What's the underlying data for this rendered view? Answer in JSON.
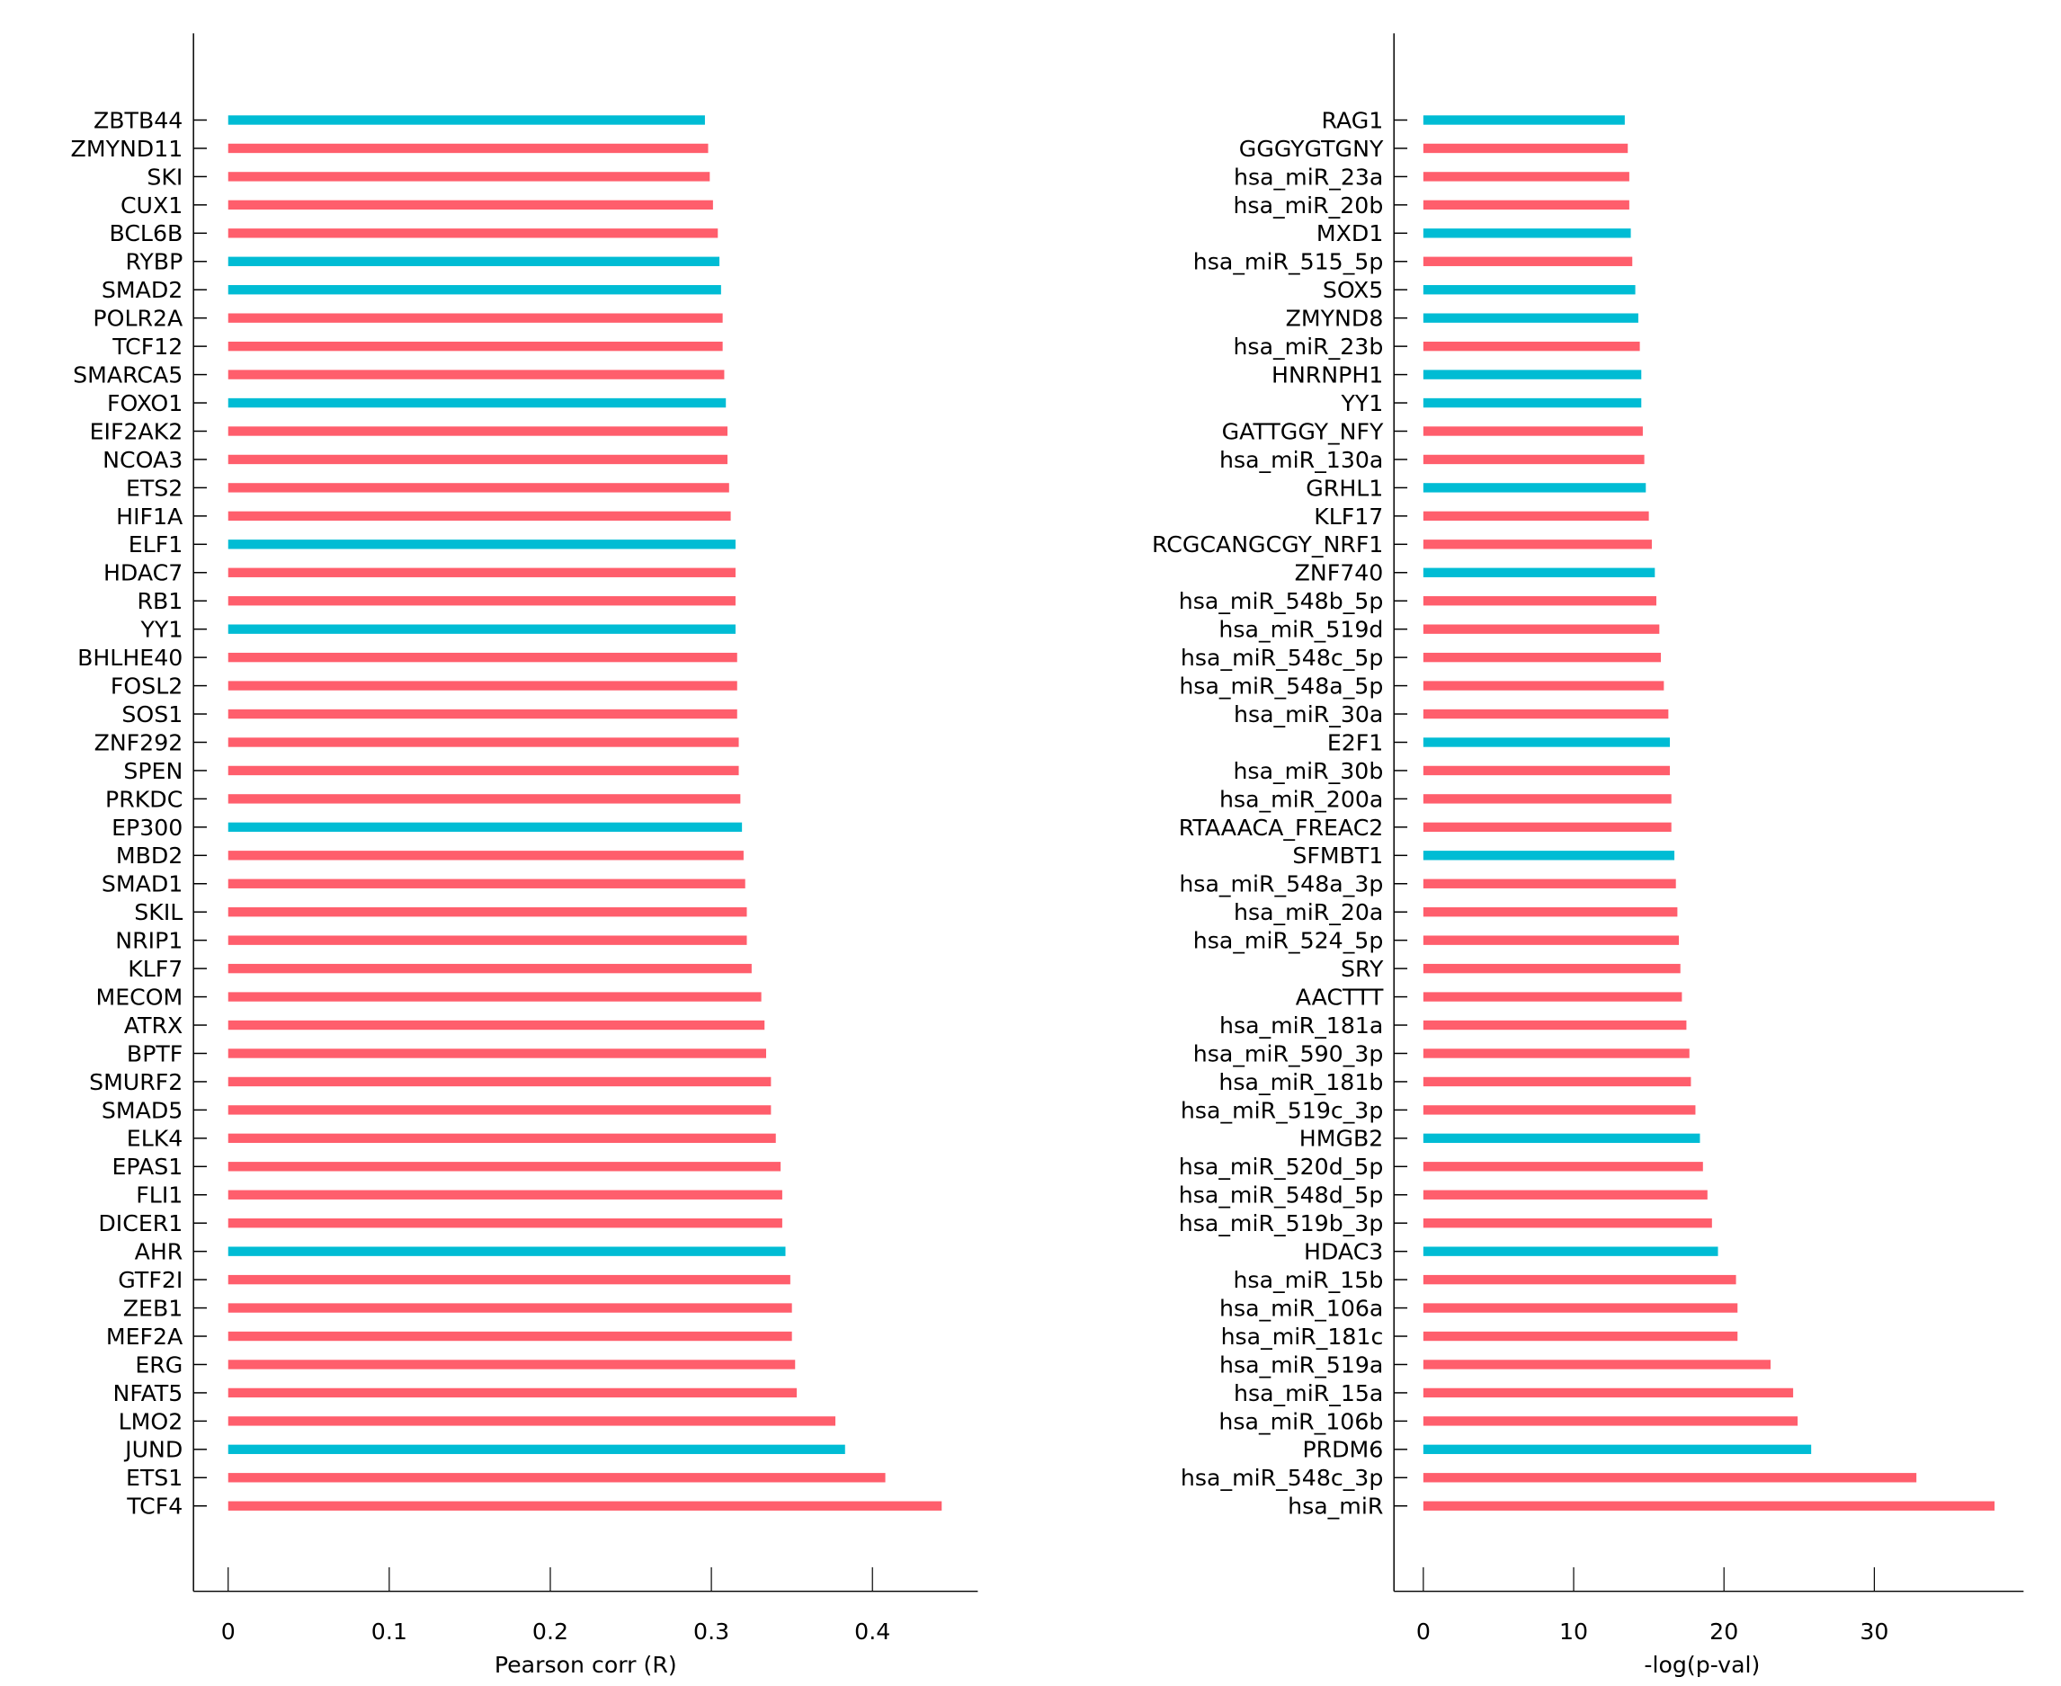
{
  "colors": {
    "red": "#ff5e6c",
    "cyan": "#00bcd4",
    "axis": "#000000"
  },
  "chart_data": [
    {
      "type": "bar",
      "orientation": "horizontal",
      "xlabel": "Pearson corr (R)",
      "xlim": [
        -0.022,
        0.465
      ],
      "xticks": [
        0,
        0.1,
        0.2,
        0.3,
        0.4
      ],
      "xtick_labels": [
        "0",
        "0.1",
        "0.2",
        "0.3",
        "0.4"
      ],
      "grid": false,
      "categories": [
        "ZBTB44",
        "ZMYND11",
        "SKI",
        "CUX1",
        "BCL6B",
        "RYBP",
        "SMAD2",
        "POLR2A",
        "TCF12",
        "SMARCA5",
        "FOXO1",
        "EIF2AK2",
        "NCOA3",
        "ETS2",
        "HIF1A",
        "ELF1",
        "HDAC7",
        "RB1",
        "YY1",
        "BHLHE40",
        "FOSL2",
        "SOS1",
        "ZNF292",
        "SPEN",
        "PRKDC",
        "EP300",
        "MBD2",
        "SMAD1",
        "SKIL",
        "NRIP1",
        "KLF7",
        "MECOM",
        "ATRX",
        "BPTF",
        "SMURF2",
        "SMAD5",
        "ELK4",
        "EPAS1",
        "FLI1",
        "DICER1",
        "AHR",
        "GTF2I",
        "ZEB1",
        "MEF2A",
        "ERG",
        "NFAT5",
        "LMO2",
        "JUND",
        "ETS1",
        "TCF4"
      ],
      "values": [
        0.296,
        0.298,
        0.299,
        0.301,
        0.304,
        0.305,
        0.306,
        0.307,
        0.307,
        0.308,
        0.309,
        0.31,
        0.31,
        0.311,
        0.312,
        0.315,
        0.315,
        0.315,
        0.315,
        0.316,
        0.316,
        0.316,
        0.317,
        0.317,
        0.318,
        0.319,
        0.32,
        0.321,
        0.322,
        0.322,
        0.325,
        0.331,
        0.333,
        0.334,
        0.337,
        0.337,
        0.34,
        0.343,
        0.344,
        0.344,
        0.346,
        0.349,
        0.35,
        0.35,
        0.352,
        0.353,
        0.377,
        0.383,
        0.408,
        0.443
      ],
      "cyan_items": [
        "ZBTB44",
        "RYBP",
        "SMAD2",
        "FOXO1",
        "ELF1",
        "YY1",
        "EP300",
        "AHR",
        "JUND"
      ]
    },
    {
      "type": "bar",
      "orientation": "horizontal",
      "xlabel": "-log(p-val)",
      "xlim": [
        -1.9,
        40
      ],
      "xticks": [
        0,
        10,
        20,
        30
      ],
      "xtick_labels": [
        "0",
        "10",
        "20",
        "30"
      ],
      "grid": false,
      "categories": [
        "RAG1",
        "GGGYGTGNY",
        "hsa_miR_23a",
        "hsa_miR_20b",
        "MXD1",
        "hsa_miR_515_5p",
        "SOX5",
        "ZMYND8",
        "hsa_miR_23b",
        "HNRNPH1",
        "YY1",
        "GATTGGY_NFY",
        "hsa_miR_130a",
        "GRHL1",
        "KLF17",
        "RCGCANGCGY_NRF1",
        "ZNF740",
        "hsa_miR_548b_5p",
        "hsa_miR_519d",
        "hsa_miR_548c_5p",
        "hsa_miR_548a_5p",
        "hsa_miR_30a",
        "E2F1",
        "hsa_miR_30b",
        "hsa_miR_200a",
        "RTAAACA_FREAC2",
        "SFMBT1",
        "hsa_miR_548a_3p",
        "hsa_miR_20a",
        "hsa_miR_524_5p",
        "SRY",
        "AACTTT",
        "hsa_miR_181a",
        "hsa_miR_590_3p",
        "hsa_miR_181b",
        "hsa_miR_519c_3p",
        "HMGB2",
        "hsa_miR_520d_5p",
        "hsa_miR_548d_5p",
        "hsa_miR_519b_3p",
        "HDAC3",
        "hsa_miR_15b",
        "hsa_miR_106a",
        "hsa_miR_181c",
        "hsa_miR_519a",
        "hsa_miR_15a",
        "hsa_miR_106b",
        "PRDM6",
        "hsa_miR_548c_3p",
        "hsa_miR"
      ],
      "values": [
        13.4,
        13.6,
        13.7,
        13.7,
        13.8,
        13.9,
        14.1,
        14.3,
        14.4,
        14.5,
        14.5,
        14.6,
        14.7,
        14.8,
        15.0,
        15.2,
        15.4,
        15.5,
        15.7,
        15.8,
        16.0,
        16.3,
        16.4,
        16.4,
        16.5,
        16.5,
        16.7,
        16.8,
        16.9,
        17.0,
        17.1,
        17.2,
        17.5,
        17.7,
        17.8,
        18.1,
        18.4,
        18.6,
        18.9,
        19.2,
        19.6,
        20.8,
        20.9,
        20.9,
        23.1,
        24.6,
        24.9,
        25.8,
        32.8,
        38.0
      ],
      "cyan_items": [
        "RAG1",
        "MXD1",
        "SOX5",
        "ZMYND8",
        "HNRNPH1",
        "YY1",
        "GRHL1",
        "ZNF740",
        "E2F1",
        "SFMBT1",
        "HMGB2",
        "HDAC3",
        "PRDM6"
      ]
    }
  ]
}
